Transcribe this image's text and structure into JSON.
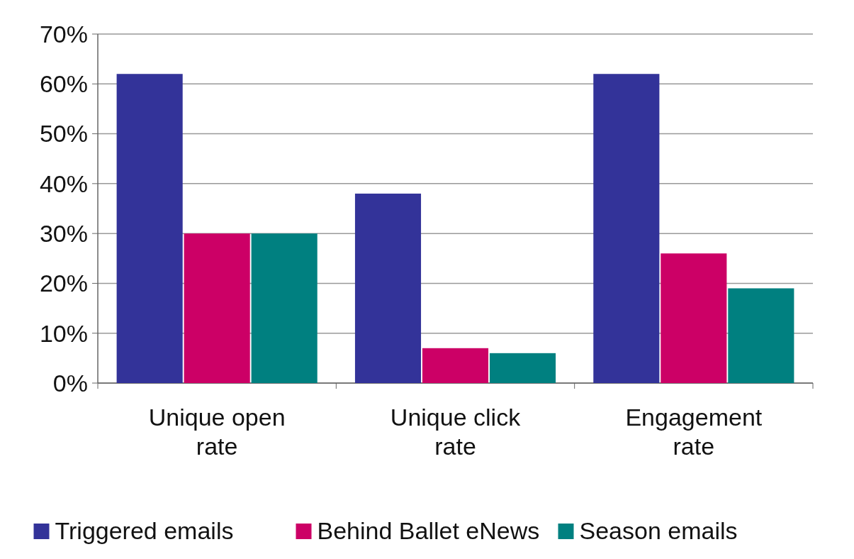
{
  "chart_data": {
    "type": "bar",
    "categories": [
      "Unique open rate",
      "Unique click rate",
      "Engagement rate"
    ],
    "series": [
      {
        "name": "Triggered emails",
        "color": "#333399",
        "values": [
          62,
          38,
          62
        ]
      },
      {
        "name": "Behind Ballet eNews",
        "color": "#cc0066",
        "values": [
          30,
          7,
          26
        ]
      },
      {
        "name": "Season emails",
        "color": "#008080",
        "values": [
          30,
          6,
          19
        ]
      }
    ],
    "ylim": [
      0,
      70
    ],
    "yticks": [
      {
        "value": 0,
        "label": "0%"
      },
      {
        "value": 10,
        "label": "10%"
      },
      {
        "value": 20,
        "label": "20%"
      },
      {
        "value": 30,
        "label": "30%"
      },
      {
        "value": 40,
        "label": "40%"
      },
      {
        "value": 50,
        "label": "50%"
      },
      {
        "value": 60,
        "label": "60%"
      },
      {
        "value": 70,
        "label": "70%"
      }
    ],
    "grid": "y",
    "legend": "bottom"
  }
}
